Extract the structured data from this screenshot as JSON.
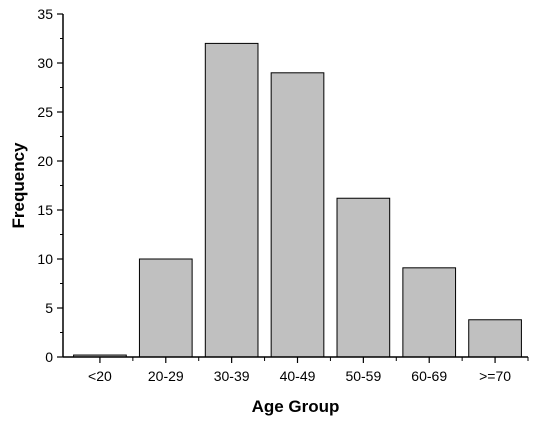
{
  "chart_data": {
    "type": "bar",
    "title": "",
    "xlabel": "Age Group",
    "ylabel": "Frequency",
    "categories": [
      "<20",
      "20-29",
      "30-39",
      "40-49",
      "50-59",
      "60-69",
      ">=70"
    ],
    "values": [
      0.2,
      10,
      32,
      29,
      16.2,
      9.1,
      3.8
    ],
    "ylim": [
      0,
      35
    ],
    "yticks": [
      0,
      5,
      10,
      15,
      20,
      25,
      30,
      35
    ],
    "y_minor_step": 2.5,
    "grid": false,
    "legend": "none",
    "bar_color": "#c0c0c0",
    "bar_edge_color": "#000000",
    "axis_color": "#000000"
  }
}
